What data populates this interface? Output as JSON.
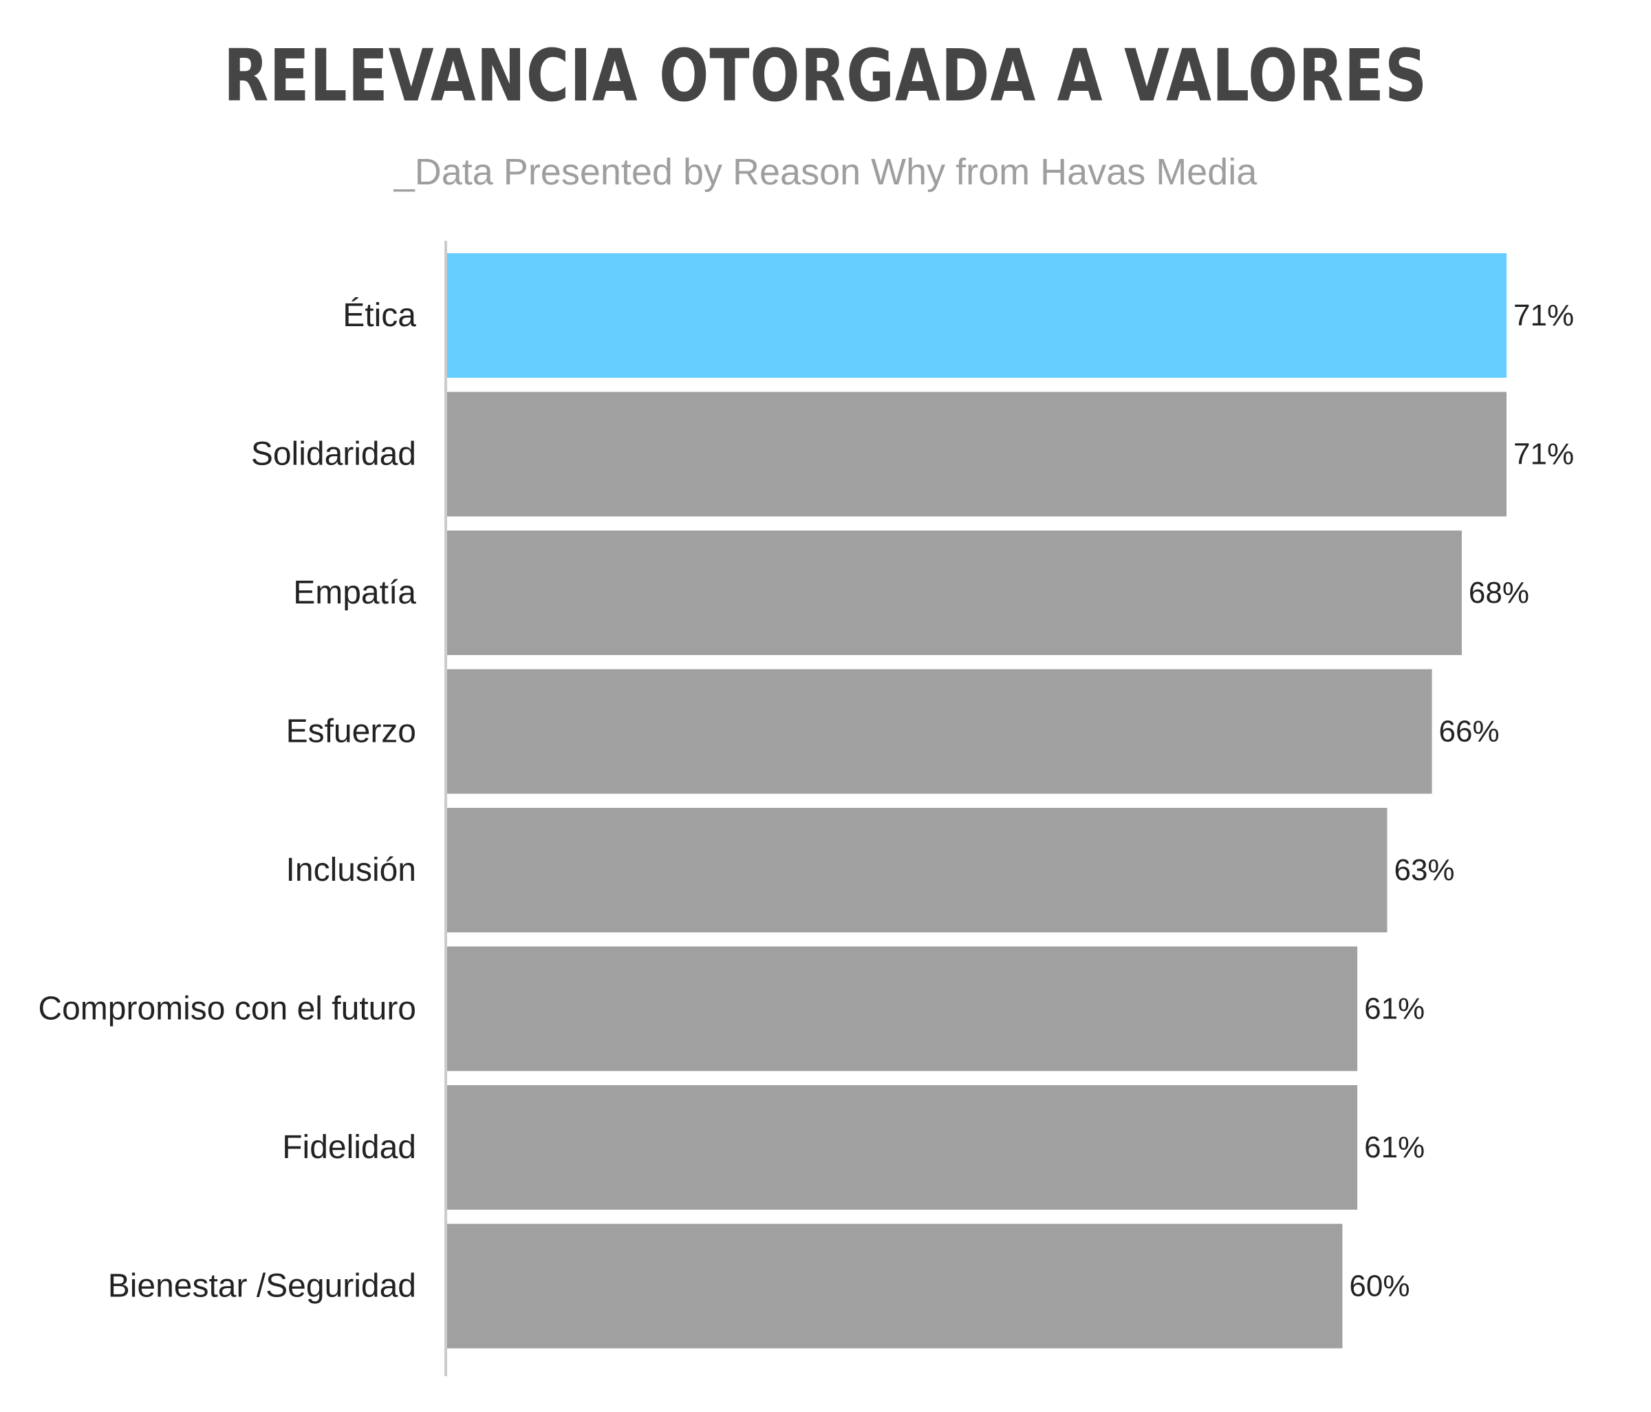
{
  "title": "RELEVANCIA OTORGADA A VALORES",
  "subtitle": "_Data Presented by Reason Why from Havas Media",
  "colors": {
    "highlight": "#66CDFF",
    "bar": "#A0A0A0",
    "axis": "#CCCCCC",
    "title": "#454545",
    "subtitle": "#9E9E9E"
  },
  "chart_data": {
    "type": "bar",
    "orientation": "horizontal",
    "title": "RELEVANCIA OTORGADA A VALORES",
    "subtitle": "_Data Presented by Reason Why from Havas Media",
    "categories": [
      "Ética",
      "Solidaridad",
      "Empatía",
      "Esfuerzo",
      "Inclusión",
      "Compromiso con el futuro",
      "Fidelidad",
      "Bienestar /Seguridad"
    ],
    "values": [
      71,
      71,
      68,
      66,
      63,
      61,
      61,
      60
    ],
    "value_labels": [
      "71%",
      "71%",
      "68%",
      "66%",
      "63%",
      "61%",
      "61%",
      "60%"
    ],
    "highlighted_index": 0,
    "unit": "%",
    "xlim": [
      0,
      71
    ],
    "grid": false,
    "legend": "none"
  }
}
